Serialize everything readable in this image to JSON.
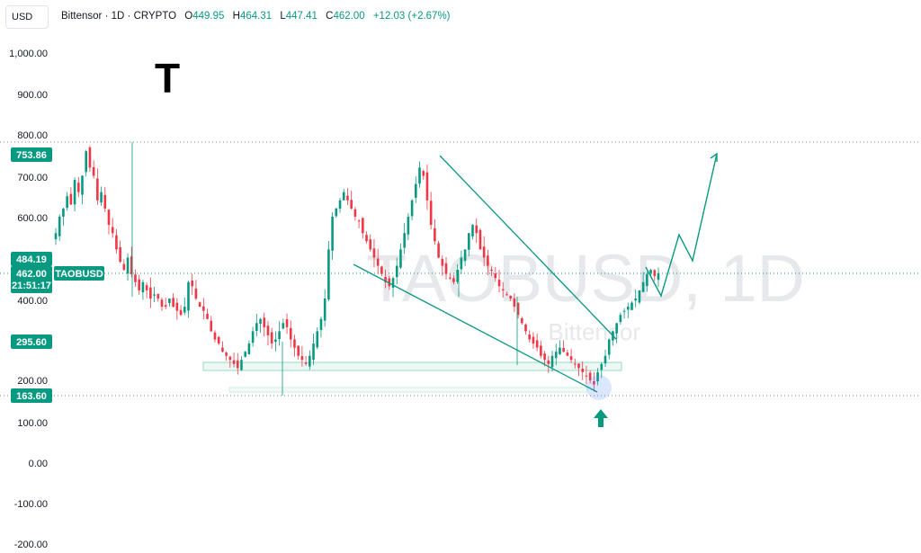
{
  "header": {
    "currency": "USD",
    "symbol_name": "Bittensor",
    "interval": "1D",
    "exchange": "CRYPTO",
    "o_label": "O",
    "o_value": "449.95",
    "h_label": "H",
    "h_value": "464.31",
    "l_label": "L",
    "l_value": "447.41",
    "c_label": "C",
    "c_value": "462.00",
    "change": "+12.03 (+2.67%)"
  },
  "watermark": {
    "symbol": "TAOBUSD, 1D",
    "name": "Bittensor"
  },
  "logo_glyph": "T",
  "price_badges": {
    "high": "753.86",
    "level1": "484.19",
    "last": "462.00",
    "countdown": "21:51:17",
    "ticker": "TAOBUSD",
    "level2": "295.60",
    "low": "163.60"
  },
  "colors": {
    "up": "#089981",
    "down": "#f23645",
    "accent": "#089981",
    "grid_dots": "#7b7f8c"
  },
  "icons": {
    "up_arrow": "arrow-up-icon"
  },
  "chart_data": {
    "type": "candlestick",
    "symbol": "TAOBUSD",
    "interval": "1D",
    "y_ticks": [
      "1,000.00",
      "900.00",
      "800.00",
      "700.00",
      "600.00",
      "400.00",
      "200.00",
      "100.00",
      "0.00",
      "-100.00",
      "-200.00"
    ],
    "ylim": [
      -200,
      1000
    ],
    "grid": false,
    "horizontal_levels": [
      784,
      163.6
    ],
    "support_zone": [
      231,
      254
    ],
    "close_series": [
      560,
      600,
      620,
      650,
      630,
      690,
      660,
      700,
      760,
      720,
      700,
      640,
      660,
      620,
      580,
      560,
      520,
      490,
      470,
      500,
      460,
      440,
      420,
      440,
      420,
      400,
      410,
      400,
      380,
      380,
      400,
      380,
      370,
      360,
      380,
      440,
      430,
      400,
      380,
      370,
      350,
      320,
      300,
      290,
      270,
      260,
      250,
      240,
      230,
      250,
      270,
      290,
      320,
      340,
      350,
      330,
      310,
      290,
      300,
      320,
      340,
      330,
      300,
      280,
      260,
      250,
      240,
      260,
      290,
      320,
      350,
      400,
      520,
      600,
      620,
      640,
      660,
      640,
      620,
      600,
      590,
      560,
      540,
      520,
      500,
      480,
      460,
      440,
      430,
      450,
      480,
      520,
      560,
      600,
      640,
      680,
      720,
      700,
      640,
      580,
      540,
      500,
      480,
      460,
      450,
      440,
      470,
      500,
      520,
      560,
      580,
      560,
      520,
      500,
      480,
      470,
      450,
      430,
      420,
      410,
      400,
      380,
      360,
      340,
      320,
      300,
      290,
      280,
      260,
      250,
      240,
      260,
      270,
      280,
      270,
      260,
      250,
      240,
      230,
      220,
      210,
      200,
      190,
      220,
      240,
      260,
      300,
      320,
      340,
      360,
      370,
      380,
      390,
      400,
      420,
      440,
      460,
      470,
      455,
      462
    ],
    "projection_path": [
      [
        467,
        393
      ],
      [
        530,
        488
      ],
      [
        560,
        406
      ],
      [
        610,
        550
      ],
      [
        650,
        752
      ]
    ],
    "falling_wedge": {
      "upper": [
        [
          753,
          300
        ],
        [
          300,
          300
        ]
      ],
      "lower": [
        [
          478,
          163
        ]
      ]
    }
  }
}
